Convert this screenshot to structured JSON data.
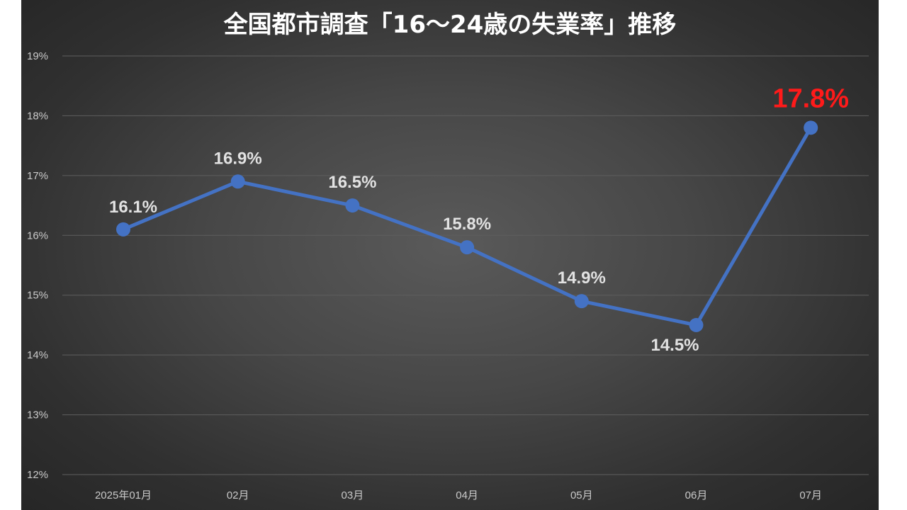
{
  "colors": {
    "line": "#4472C4",
    "highlight": "#FF1A1A",
    "label": "#E2E2E2",
    "tick": "#C9C9C9",
    "grid": "#5E5E5E"
  },
  "chart_data": {
    "type": "line",
    "title": "全国都市調査「16～24歳の失業率」推移",
    "categories": [
      "2025年01月",
      "02月",
      "03月",
      "04月",
      "05月",
      "06月",
      "07月"
    ],
    "series": [
      {
        "values": [
          16.1,
          16.9,
          16.5,
          15.8,
          14.9,
          14.5,
          17.8
        ]
      }
    ],
    "data_labels": [
      "16.1%",
      "16.9%",
      "16.5%",
      "15.8%",
      "14.9%",
      "14.5%",
      "17.8%"
    ],
    "highlight_index": 6,
    "y_ticks": [
      "12%",
      "13%",
      "14%",
      "15%",
      "16%",
      "17%",
      "18%",
      "19%"
    ],
    "ylim": [
      12,
      19
    ],
    "grid": true,
    "legend": "none"
  }
}
